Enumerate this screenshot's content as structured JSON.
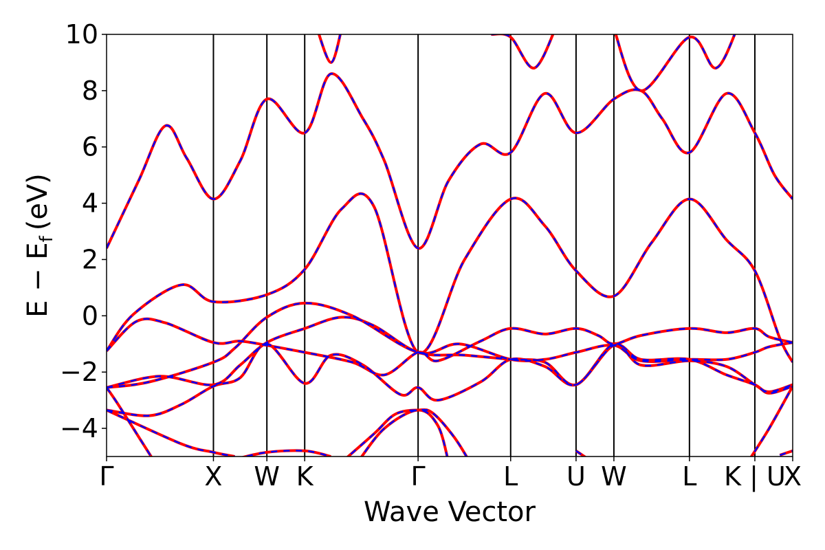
{
  "chart_data": {
    "type": "line",
    "title": "",
    "xlabel": "Wave Vector",
    "ylabel": "E − E",
    "ylabel_subscript": "f",
    "ylabel_unit": "(eV)",
    "ylim": [
      -5,
      10
    ],
    "y_ticks": [
      -4,
      -2,
      0,
      2,
      4,
      6,
      8,
      10
    ],
    "y_tick_labels": [
      "−4",
      "−2",
      "0",
      "2",
      "4",
      "6",
      "8",
      "10"
    ],
    "x_ticks": [
      {
        "label": "Γ",
        "k": 0.0
      },
      {
        "label": "X",
        "k": 1.0
      },
      {
        "label": "W",
        "k": 1.5
      },
      {
        "label": "K",
        "k": 1.854
      },
      {
        "label": "Γ",
        "k": 2.915
      },
      {
        "label": "L",
        "k": 3.781
      },
      {
        "label": "U",
        "k": 4.393
      },
      {
        "label": "W",
        "k": 4.747
      },
      {
        "label": "L",
        "k": 5.454
      },
      {
        "label": "K | U",
        "k": 6.066
      },
      {
        "label": "X",
        "k": 6.42
      }
    ],
    "colors": {
      "series_a": "#ff0000",
      "series_b": "#0000ff"
    },
    "series_names": [],
    "bands": [
      [
        [
          0,
          -1.25
        ],
        [
          0.28,
          -0.2
        ],
        [
          0.55,
          -0.25
        ],
        [
          1.0,
          -0.95
        ],
        [
          1.25,
          -0.9
        ],
        [
          1.5,
          -1.05
        ],
        [
          1.854,
          -1.3
        ],
        [
          2.3,
          -1.65
        ],
        [
          2.6,
          -2.1
        ],
        [
          2.915,
          -1.3
        ],
        [
          3.1,
          -1.6
        ],
        [
          3.5,
          -0.9
        ],
        [
          3.781,
          -0.45
        ],
        [
          4.1,
          -0.65
        ],
        [
          4.393,
          -0.45
        ],
        [
          4.6,
          -0.7
        ],
        [
          4.747,
          -1.0
        ],
        [
          5.0,
          -0.7
        ],
        [
          5.454,
          -0.45
        ],
        [
          5.8,
          -0.6
        ],
        [
          6.066,
          -0.45
        ],
        [
          6.2,
          -0.75
        ],
        [
          6.42,
          -0.95
        ]
      ],
      [
        [
          0,
          -1.25
        ],
        [
          0.25,
          0.05
        ],
        [
          0.7,
          1.1
        ],
        [
          1.0,
          0.5
        ],
        [
          1.5,
          0.75
        ],
        [
          1.854,
          1.65
        ],
        [
          2.2,
          3.8
        ],
        [
          2.5,
          3.9
        ],
        [
          2.915,
          -1.3
        ],
        [
          3.35,
          2.0
        ],
        [
          3.781,
          4.15
        ],
        [
          4.1,
          3.2
        ],
        [
          4.393,
          1.6
        ],
        [
          4.747,
          0.7
        ],
        [
          5.1,
          2.6
        ],
        [
          5.454,
          4.15
        ],
        [
          5.8,
          2.7
        ],
        [
          6.066,
          1.6
        ],
        [
          6.3,
          -0.8
        ],
        [
          6.42,
          -1.65
        ]
      ],
      [
        [
          0,
          -2.55
        ],
        [
          0.4,
          -2.35
        ],
        [
          1.0,
          -1.65
        ],
        [
          1.2,
          -1.15
        ],
        [
          1.5,
          -0.05
        ],
        [
          1.854,
          0.45
        ],
        [
          2.3,
          0.0
        ],
        [
          2.915,
          -1.3
        ],
        [
          3.3,
          -1.0
        ],
        [
          3.781,
          -1.55
        ],
        [
          4.1,
          -1.55
        ],
        [
          4.393,
          -1.3
        ],
        [
          4.747,
          -1.05
        ],
        [
          5.0,
          -1.6
        ],
        [
          5.454,
          -1.55
        ],
        [
          5.8,
          -1.55
        ],
        [
          6.066,
          -1.3
        ],
        [
          6.2,
          -1.1
        ],
        [
          6.42,
          -0.95
        ]
      ],
      [
        [
          0,
          -2.55
        ],
        [
          0.5,
          -2.15
        ],
        [
          1.0,
          -2.45
        ],
        [
          1.25,
          -1.75
        ],
        [
          1.5,
          -0.95
        ],
        [
          1.854,
          -0.45
        ],
        [
          2.2,
          -0.05
        ],
        [
          2.5,
          -0.35
        ],
        [
          2.915,
          -1.3
        ],
        [
          3.35,
          -1.4
        ],
        [
          3.781,
          -1.55
        ],
        [
          4.1,
          -1.65
        ],
        [
          4.393,
          -2.45
        ],
        [
          4.747,
          -1.0
        ],
        [
          5.0,
          -1.75
        ],
        [
          5.454,
          -1.6
        ],
        [
          5.8,
          -1.8
        ],
        [
          6.066,
          -2.45
        ],
        [
          6.2,
          -2.7
        ],
        [
          6.42,
          -2.45
        ]
      ],
      [
        [
          0,
          -3.35
        ],
        [
          0.4,
          -3.55
        ],
        [
          0.7,
          -3.15
        ],
        [
          1.0,
          -2.5
        ],
        [
          1.25,
          -2.2
        ],
        [
          1.5,
          -1.0
        ],
        [
          1.854,
          -2.4
        ],
        [
          2.1,
          -1.4
        ],
        [
          2.4,
          -1.75
        ],
        [
          2.75,
          -2.8
        ],
        [
          2.915,
          -2.55
        ],
        [
          3.1,
          -3.0
        ],
        [
          3.5,
          -2.35
        ],
        [
          3.781,
          -1.55
        ],
        [
          4.1,
          -1.8
        ],
        [
          4.393,
          -2.45
        ],
        [
          4.747,
          -1.05
        ],
        [
          5.0,
          -1.55
        ],
        [
          5.454,
          -1.55
        ],
        [
          5.8,
          -2.1
        ],
        [
          6.066,
          -2.45
        ],
        [
          6.2,
          -2.75
        ],
        [
          6.42,
          -2.5
        ]
      ],
      [
        [
          0,
          -2.55
        ],
        [
          0.1,
          -3.1
        ],
        [
          0.3,
          -4.3
        ],
        [
          0.45,
          -5.2
        ]
      ],
      [
        [
          0,
          -3.35
        ],
        [
          0.7,
          -4.55
        ],
        [
          1.0,
          -4.85
        ],
        [
          1.2,
          -5.0
        ]
      ],
      [
        [
          1.2,
          -5.1
        ],
        [
          1.5,
          -4.85
        ],
        [
          1.854,
          -4.8
        ],
        [
          2.1,
          -5.0
        ]
      ],
      [
        [
          2.2,
          -5.2
        ],
        [
          2.5,
          -4.2
        ],
        [
          2.7,
          -3.5
        ],
        [
          2.915,
          -3.35
        ],
        [
          3.05,
          -3.45
        ],
        [
          3.25,
          -4.3
        ],
        [
          3.4,
          -5.2
        ]
      ],
      [
        [
          2.35,
          -5.2
        ],
        [
          2.6,
          -4.0
        ],
        [
          2.915,
          -3.35
        ],
        [
          3.1,
          -3.9
        ],
        [
          3.2,
          -5.2
        ]
      ],
      [
        [
          6.0,
          -5.2
        ],
        [
          6.2,
          -4.0
        ],
        [
          6.42,
          -2.5
        ]
      ],
      [
        [
          4.393,
          -4.8
        ],
        [
          4.55,
          -5.2
        ]
      ],
      [
        [
          6.3,
          -4.95
        ],
        [
          6.42,
          -4.8
        ]
      ],
      [
        [
          0,
          2.4
        ],
        [
          0.3,
          4.8
        ],
        [
          0.55,
          6.75
        ],
        [
          0.75,
          5.6
        ],
        [
          1.0,
          4.15
        ],
        [
          1.25,
          5.5
        ],
        [
          1.5,
          7.7
        ],
        [
          1.854,
          6.5
        ],
        [
          2.1,
          8.6
        ],
        [
          2.4,
          7.0
        ],
        [
          2.6,
          5.5
        ],
        [
          2.915,
          2.4
        ],
        [
          3.2,
          4.8
        ],
        [
          3.5,
          6.1
        ],
        [
          3.781,
          5.8
        ],
        [
          4.1,
          7.9
        ],
        [
          4.393,
          6.5
        ],
        [
          4.747,
          7.7
        ],
        [
          5.0,
          8.0
        ],
        [
          5.2,
          7.0
        ],
        [
          5.454,
          5.8
        ],
        [
          5.8,
          7.9
        ],
        [
          6.066,
          6.5
        ],
        [
          6.25,
          5.0
        ],
        [
          6.42,
          4.15
        ]
      ],
      [
        [
          1.97,
          10.2
        ],
        [
          2.1,
          9.0
        ],
        [
          2.2,
          10.2
        ]
      ],
      [
        [
          3.6,
          10.0
        ],
        [
          3.781,
          9.9
        ],
        [
          4.0,
          8.8
        ],
        [
          4.2,
          10.2
        ]
      ],
      [
        [
          4.747,
          10.2
        ],
        [
          5.0,
          8.0
        ],
        [
          5.454,
          9.9
        ],
        [
          5.7,
          8.8
        ],
        [
          5.9,
          10.2
        ]
      ]
    ]
  }
}
